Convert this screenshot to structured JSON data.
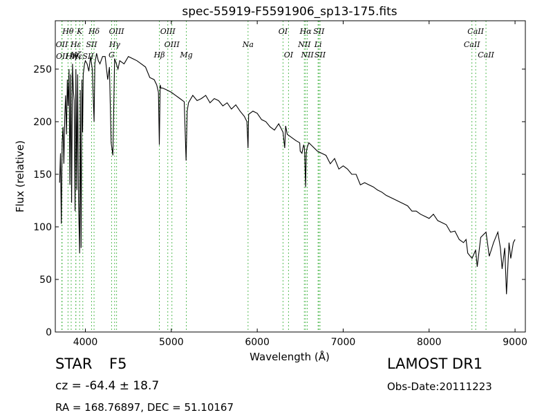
{
  "chart_data": {
    "type": "line",
    "title": "spec-55919-F5591906_sp13-175.fits",
    "xlabel": "Wavelength (Å)",
    "ylabel": "Flux (relative)",
    "xlim": [
      3650,
      9120
    ],
    "ylim": [
      0,
      296
    ],
    "xticks": [
      4000,
      5000,
      6000,
      7000,
      8000,
      9000
    ],
    "yticks": [
      0,
      50,
      100,
      150,
      200,
      250
    ],
    "grid": false,
    "line_color": "#000000",
    "marker_line_color": "#55bb55",
    "series": [
      {
        "x": [
          3700,
          3710,
          3720,
          3730,
          3740,
          3750,
          3760,
          3770,
          3780,
          3790,
          3800,
          3810,
          3820,
          3830,
          3840,
          3850,
          3860,
          3870,
          3880,
          3890,
          3900,
          3910,
          3920,
          3933,
          3940,
          3950,
          3960,
          3968,
          3975,
          3990,
          4000,
          4020,
          4040,
          4060,
          4080,
          4101,
          4110,
          4130,
          4150,
          4170,
          4200,
          4230,
          4260,
          4280,
          4300,
          4320,
          4340,
          4360,
          4380,
          4400,
          4450,
          4500,
          4550,
          4600,
          4650,
          4700,
          4750,
          4800,
          4830,
          4850,
          4861,
          4870,
          4880,
          4900,
          4950,
          5000,
          5050,
          5100,
          5150,
          5172,
          5185,
          5200,
          5250,
          5300,
          5350,
          5400,
          5450,
          5500,
          5550,
          5600,
          5650,
          5700,
          5750,
          5800,
          5850,
          5880,
          5893,
          5900,
          5950,
          6000,
          6050,
          6100,
          6150,
          6200,
          6250,
          6300,
          6320,
          6330,
          6350,
          6400,
          6450,
          6494,
          6500,
          6520,
          6540,
          6550,
          6563,
          6570,
          6580,
          6600,
          6650,
          6700,
          6750,
          6800,
          6850,
          6900,
          6950,
          7000,
          7050,
          7100,
          7150,
          7200,
          7250,
          7300,
          7350,
          7400,
          7450,
          7500,
          7550,
          7600,
          7650,
          7700,
          7750,
          7800,
          7850,
          7900,
          7950,
          8000,
          8050,
          8100,
          8150,
          8200,
          8250,
          8300,
          8350,
          8400,
          8430,
          8450,
          8500,
          8542,
          8560,
          8600,
          8662,
          8700,
          8750,
          8800,
          8830,
          8850,
          8880,
          8900,
          8930,
          8950,
          8980,
          9000
        ],
        "y": [
          142,
          170,
          103,
          180,
          195,
          160,
          205,
          225,
          188,
          240,
          215,
          250,
          140,
          245,
          123,
          255,
          230,
          220,
          115,
          250,
          135,
          245,
          125,
          75,
          230,
          80,
          240,
          190,
          245,
          255,
          258,
          255,
          248,
          262,
          250,
          200,
          255,
          265,
          258,
          255,
          262,
          262,
          240,
          252,
          180,
          168,
          260,
          255,
          250,
          258,
          255,
          262,
          260,
          258,
          255,
          252,
          242,
          240,
          235,
          228,
          178,
          235,
          232,
          232,
          230,
          228,
          225,
          222,
          219,
          163,
          210,
          218,
          225,
          220,
          222,
          225,
          218,
          222,
          220,
          215,
          218,
          212,
          216,
          210,
          205,
          200,
          175,
          207,
          210,
          208,
          202,
          200,
          195,
          192,
          198,
          190,
          175,
          196,
          188,
          185,
          182,
          180,
          172,
          170,
          178,
          175,
          138,
          170,
          175,
          180,
          176,
          172,
          170,
          168,
          160,
          165,
          155,
          158,
          155,
          150,
          150,
          140,
          142,
          140,
          138,
          135,
          133,
          130,
          128,
          126,
          124,
          122,
          120,
          115,
          115,
          112,
          110,
          108,
          112,
          106,
          104,
          102,
          95,
          96,
          88,
          85,
          88,
          75,
          70,
          78,
          62,
          90,
          95,
          72,
          85,
          95,
          80,
          60,
          80,
          36,
          85,
          70,
          85,
          88
        ]
      }
    ],
    "line_markers": [
      {
        "label": "Hθ",
        "x": 3798,
        "row": 0
      },
      {
        "label": "K",
        "x": 3933,
        "row": 0
      },
      {
        "label": "Hδ",
        "x": 4101,
        "row": 0
      },
      {
        "label": "OIII",
        "x": 4363,
        "row": 0
      },
      {
        "label": "OIII",
        "x": 4959,
        "row": 0
      },
      {
        "label": "OI",
        "x": 6300,
        "row": 0
      },
      {
        "label": "Hα",
        "x": 6563,
        "row": 0
      },
      {
        "label": "SII",
        "x": 6717,
        "row": 0
      },
      {
        "label": "CaII",
        "x": 8542,
        "row": 0
      },
      {
        "label": "OII",
        "x": 3726,
        "row": 1
      },
      {
        "label": "Hε",
        "x": 3889,
        "row": 1
      },
      {
        "label": "SII",
        "x": 4072,
        "row": 1
      },
      {
        "label": "Hγ",
        "x": 4340,
        "row": 1
      },
      {
        "label": "OIII",
        "x": 5007,
        "row": 1
      },
      {
        "label": "Na",
        "x": 5893,
        "row": 1
      },
      {
        "label": "NII",
        "x": 6548,
        "row": 1
      },
      {
        "label": "Li",
        "x": 6708,
        "row": 1
      },
      {
        "label": "CaII",
        "x": 8498,
        "row": 1
      },
      {
        "label": "OII",
        "x": 3729,
        "row": 2
      },
      {
        "label": "Hη",
        "x": 3835,
        "row": 2
      },
      {
        "label": "HεSII",
        "x": 3970,
        "row": 2
      },
      {
        "label": "Hζ",
        "x": 3889,
        "row": 3
      },
      {
        "label": "G",
        "x": 4305,
        "row": 3
      },
      {
        "label": "Hβ",
        "x": 4861,
        "row": 3
      },
      {
        "label": "Mg",
        "x": 5175,
        "row": 3
      },
      {
        "label": "OI",
        "x": 6364,
        "row": 3
      },
      {
        "label": "NII",
        "x": 6583,
        "row": 3
      },
      {
        "label": "SII",
        "x": 6731,
        "row": 3
      },
      {
        "label": "CaII",
        "x": 8662,
        "row": 3
      }
    ]
  },
  "info": {
    "object_type": "STAR",
    "subclass": "F5",
    "redshift": "cz = -64.4 ± 18.7",
    "coords": "RA = 168.76897, DEC = 51.10167",
    "survey": "LAMOST DR1",
    "obs_date": "Obs-Date:20111223"
  }
}
